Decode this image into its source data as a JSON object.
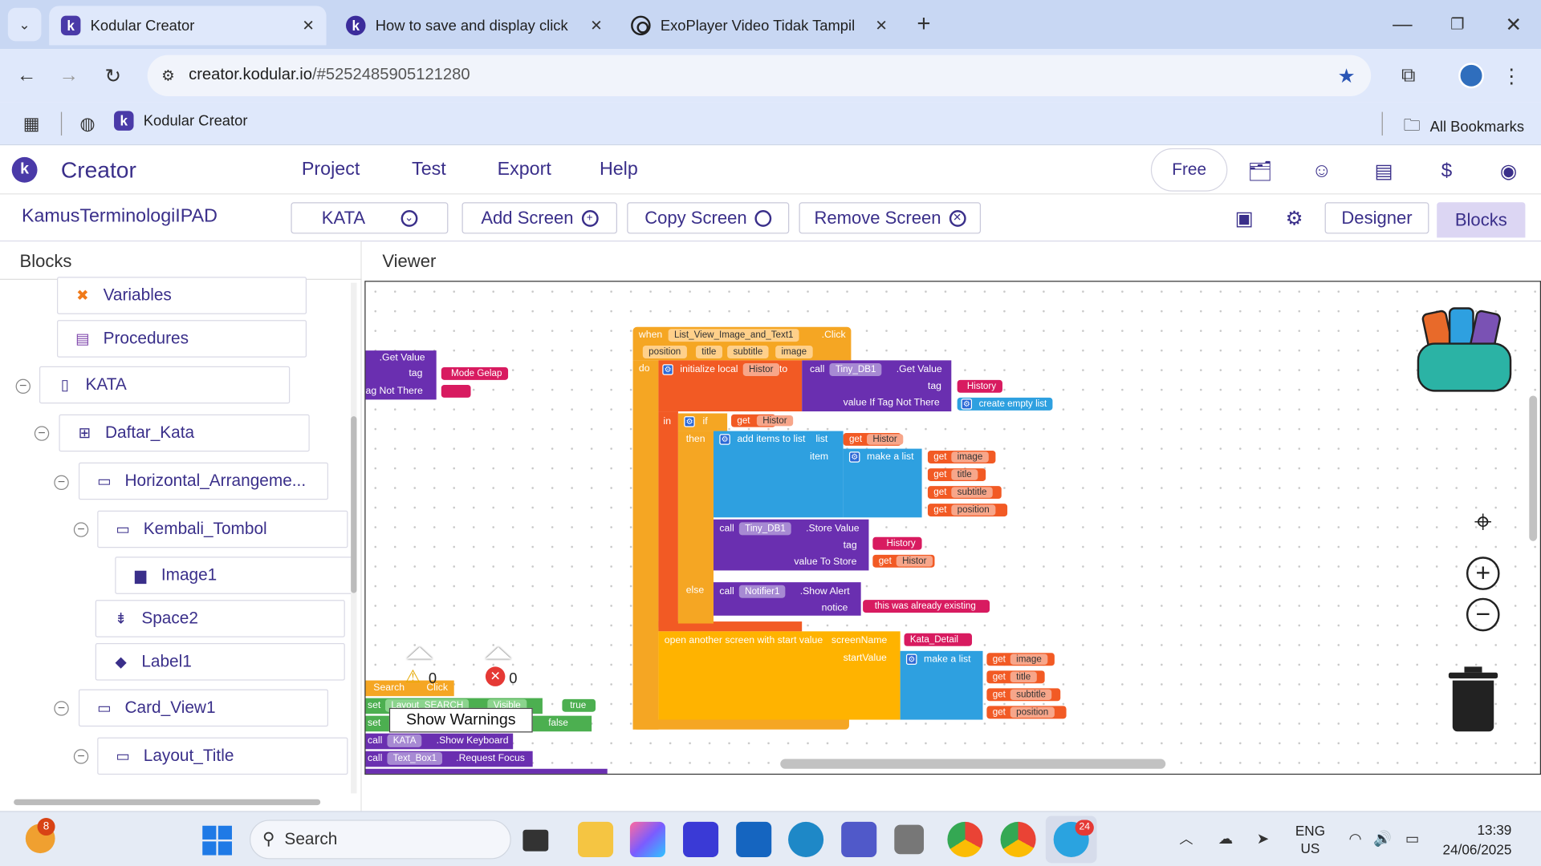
{
  "browser": {
    "tabs": [
      {
        "title": "Kodular Creator",
        "active": true
      },
      {
        "title": "How to save and display click h",
        "active": false
      },
      {
        "title": "ExoPlayer Video Tidak Tampil",
        "active": false
      }
    ],
    "url_host": "creator.kodular.io",
    "url_path": "/#5252485905121280",
    "bookmark": "Kodular Creator",
    "all_bookmarks": "All Bookmarks"
  },
  "app": {
    "brand": "Creator",
    "menu": [
      "Project",
      "Test",
      "Export",
      "Help"
    ],
    "plan": "Free",
    "project_name": "KamusTerminologiIPAD",
    "screen_select": "KATA",
    "add_screen": "Add Screen",
    "copy_screen": "Copy Screen",
    "remove_screen": "Remove Screen",
    "designer": "Designer",
    "blocks": "Blocks",
    "accent": "#3a2f8a",
    "blocks_panel_title": "Blocks",
    "viewer_title": "Viewer"
  },
  "tree": {
    "builtins": [
      "Variables",
      "Procedures"
    ],
    "screen": "KATA",
    "items": [
      {
        "label": "Daftar_Kata"
      },
      {
        "label": "Horizontal_Arrangeme..."
      },
      {
        "label": "Kembali_Tombol"
      },
      {
        "label": "Image1"
      },
      {
        "label": "Space2"
      },
      {
        "label": "Label1"
      },
      {
        "label": "Card_View1"
      },
      {
        "label": "Layout_Title"
      }
    ]
  },
  "blocks": {
    "left_get": {
      "get_value": ".Get Value",
      "tag": "tag",
      "tag_value": "Mode Gelap",
      "tag_not_there": "ag Not There"
    },
    "event": {
      "when": "when",
      "component": "List_View_Image_and_Text1",
      "event": ".Click",
      "params": [
        "position",
        "title",
        "subtitle",
        "image"
      ],
      "do": "do"
    },
    "init_local": {
      "label": "initialize local",
      "var": "Histor",
      "to": "to",
      "in": "in"
    },
    "get_value_call": {
      "call": "call",
      "db": "Tiny_DB1",
      "method": ".Get Value",
      "tag": "tag",
      "tag_value": "History",
      "if_not_there": "value If Tag Not There",
      "empty": "create empty list"
    },
    "if_block": {
      "if": "if",
      "get": "get",
      "var": "Histor",
      "then": "then",
      "else": "else"
    },
    "add_items": {
      "label": "add items to list",
      "list": "list",
      "item": "item",
      "make_list": "make a list",
      "gets": [
        "image",
        "title",
        "subtitle",
        "position"
      ]
    },
    "store": {
      "call": "call",
      "db": "Tiny_DB1",
      "method": ".Store Value",
      "tag": "tag",
      "tag_value": "History",
      "value_to_store": "value To Store",
      "get": "get",
      "var": "Histor"
    },
    "alert": {
      "call": "call",
      "comp": "Notifier1",
      "method": ".Show Alert",
      "notice": "notice",
      "text": "this was already existing"
    },
    "open_screen": {
      "label": "open another screen with start value",
      "screen_name": "screenName",
      "screen": "Kata_Detail",
      "start_value": "startValue",
      "make_list": "make a list",
      "gets": [
        "image",
        "title",
        "subtitle",
        "position"
      ]
    },
    "search": {
      "label": "Search",
      "click": "Click",
      "set1": "set",
      "layout": "Layout_SEARCH",
      "visible": "Visible",
      "to": "to",
      "true": "true",
      "false": "false",
      "kata": "KATA",
      "show_kb": ".Show Keyboard",
      "textbox": "Text_Box1",
      "focus": ".Request Focus"
    }
  },
  "warnings": {
    "count": "0",
    "errors": "0",
    "button": "Show Warnings"
  },
  "taskbar": {
    "search": "Search",
    "lang1": "ENG",
    "lang2": "US",
    "time": "13:39",
    "date": "24/06/2025",
    "weather_badge": "8",
    "telegram_badge": "24"
  }
}
